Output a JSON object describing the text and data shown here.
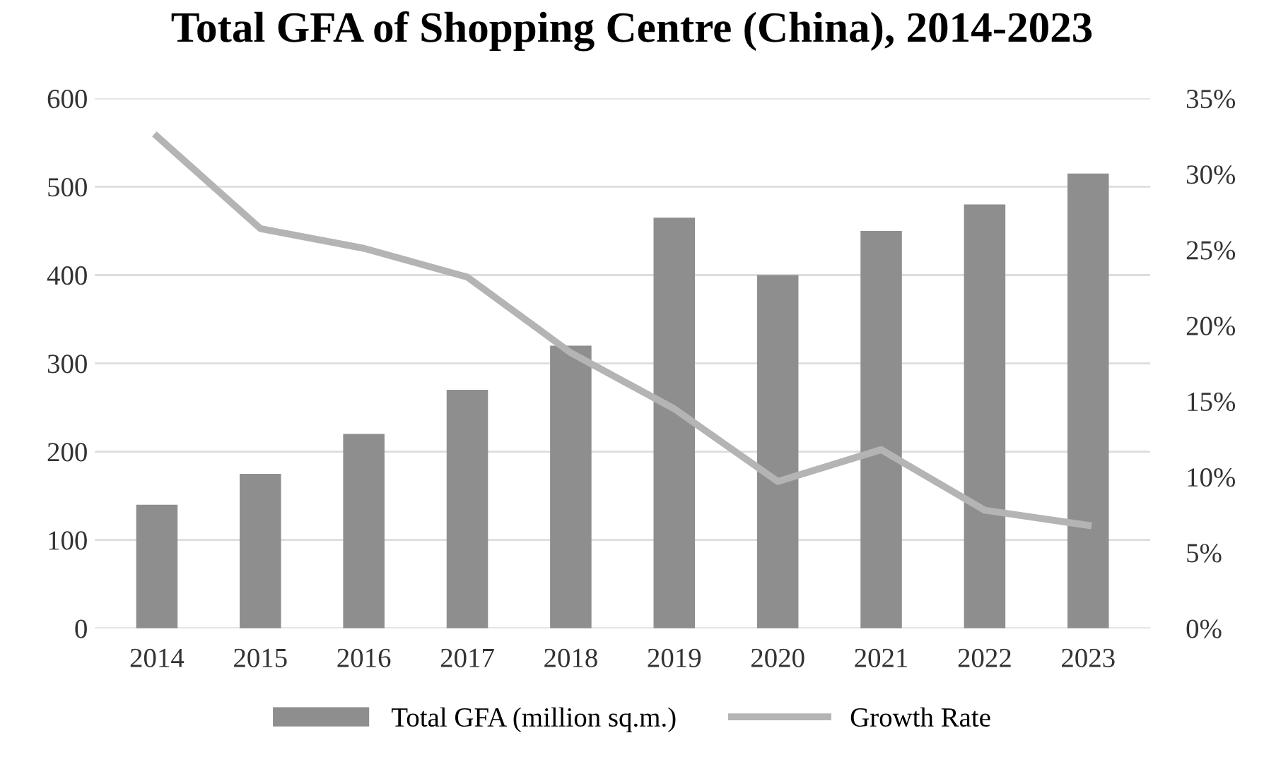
{
  "chart_data": {
    "type": "bar",
    "title": "Total GFA of Shopping Centre (China), 2014-2023",
    "categories": [
      "2014",
      "2015",
      "2016",
      "2017",
      "2018",
      "2019",
      "2020",
      "2021",
      "2022",
      "2023"
    ],
    "series": [
      {
        "name": "Total GFA (million sq.m.)",
        "color": "#8e8e8e",
        "values": [
          140,
          175,
          220,
          270,
          320,
          465,
          400,
          450,
          480,
          515
        ]
      },
      {
        "name": "Growth Rate",
        "type": "line",
        "axis": "y2",
        "color": "#b4b4b4",
        "values": [
          32.5,
          26.4,
          25.1,
          23.2,
          18.2,
          14.5,
          9.7,
          11.8,
          7.8,
          6.8
        ]
      }
    ],
    "ylim": [
      0,
      600
    ],
    "yticks": [
      0,
      100,
      200,
      300,
      400,
      500,
      600
    ],
    "y2lim": [
      0,
      35
    ],
    "y2ticks": [
      {
        "value": 0,
        "label": "0%"
      },
      {
        "value": 5,
        "label": "5%"
      },
      {
        "value": 10,
        "label": "10%"
      },
      {
        "value": 15,
        "label": "15%"
      },
      {
        "value": 20,
        "label": "20%"
      },
      {
        "value": 25,
        "label": "25%"
      },
      {
        "value": 30,
        "label": "30%"
      },
      {
        "value": 35,
        "label": "35%"
      }
    ],
    "grid": "y",
    "legend": "bottom",
    "marker": "none",
    "line_style": "solid"
  }
}
